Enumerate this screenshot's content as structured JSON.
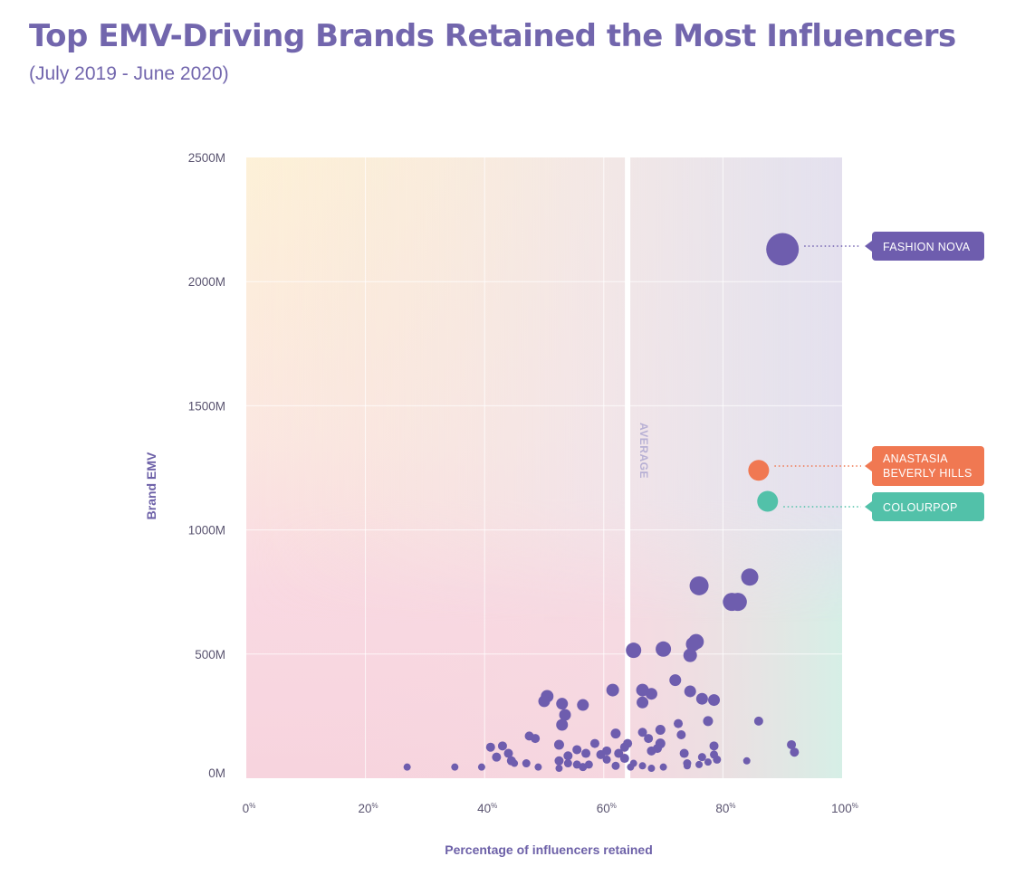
{
  "title": "Top EMV-Driving Brands Retained the Most Influencers",
  "subtitle": "(July 2019 - June 2020)",
  "colors": {
    "title": "#7266ad",
    "dot": "#6e5dae",
    "fashion_nova": "#6e5dae",
    "anastasia": "#f07852",
    "colourpop": "#52c1a9"
  },
  "chart_data": {
    "type": "scatter",
    "xlabel": "Percentage of influencers retained",
    "ylabel": "Brand EMV",
    "xlim": [
      0,
      100
    ],
    "ylim": [
      0,
      2500
    ],
    "x_ticks": [
      {
        "value": 0,
        "num": "0",
        "unit": "%"
      },
      {
        "value": 20,
        "num": "20",
        "unit": "%"
      },
      {
        "value": 40,
        "num": "40",
        "unit": "%"
      },
      {
        "value": 60,
        "num": "60",
        "unit": "%"
      },
      {
        "value": 80,
        "num": "80",
        "unit": "%"
      },
      {
        "value": 100,
        "num": "100",
        "unit": "%"
      }
    ],
    "y_ticks": [
      {
        "value": 0,
        "label": "0M"
      },
      {
        "value": 500,
        "label": "500M"
      },
      {
        "value": 1000,
        "label": "1000M"
      },
      {
        "value": 1500,
        "label": "1500M"
      },
      {
        "value": 2000,
        "label": "2000M"
      },
      {
        "value": 2500,
        "label": "2500M"
      }
    ],
    "average": {
      "x": 64,
      "label": "AVERAGE"
    },
    "highlights": [
      {
        "name": "Fashion Nova",
        "lines": [
          "FASHION NOVA"
        ],
        "x": 90,
        "y": 2130,
        "color": "#6e5dae"
      },
      {
        "name": "Anastasia Beverly Hills",
        "lines": [
          "ANASTASIA",
          "BEVERLY HILLS"
        ],
        "x": 86,
        "y": 1240,
        "color": "#f07852"
      },
      {
        "name": "Colourpop",
        "lines": [
          "COLOURPOP"
        ],
        "x": 87.5,
        "y": 1115,
        "color": "#52c1a9"
      }
    ],
    "points": [
      [
        84.5,
        810
      ],
      [
        76,
        775
      ],
      [
        81.5,
        710
      ],
      [
        82.5,
        710
      ],
      [
        75.5,
        550
      ],
      [
        70,
        520
      ],
      [
        65,
        515
      ],
      [
        75,
        540
      ],
      [
        74.5,
        495
      ],
      [
        72,
        395
      ],
      [
        61.5,
        355
      ],
      [
        66.5,
        355
      ],
      [
        68,
        340
      ],
      [
        74.5,
        350
      ],
      [
        50.5,
        330
      ],
      [
        50,
        310
      ],
      [
        53,
        300
      ],
      [
        56.5,
        295
      ],
      [
        76.5,
        320
      ],
      [
        78.5,
        315
      ],
      [
        66.5,
        305
      ],
      [
        53.5,
        255
      ],
      [
        53,
        215
      ],
      [
        86,
        230
      ],
      [
        77.5,
        230
      ],
      [
        72.5,
        220
      ],
      [
        69.5,
        195
      ],
      [
        66.5,
        185
      ],
      [
        62,
        180
      ],
      [
        73,
        175
      ],
      [
        47.5,
        170
      ],
      [
        48.5,
        160
      ],
      [
        58.5,
        140
      ],
      [
        64,
        140
      ],
      [
        52.5,
        135
      ],
      [
        41,
        125
      ],
      [
        43,
        130
      ],
      [
        63.5,
        125
      ],
      [
        69.5,
        140
      ],
      [
        68,
        110
      ],
      [
        67.5,
        160
      ],
      [
        78.5,
        130
      ],
      [
        91.5,
        135
      ],
      [
        92,
        105
      ],
      [
        44,
        100
      ],
      [
        42,
        85
      ],
      [
        55.5,
        115
      ],
      [
        60.5,
        110
      ],
      [
        54,
        90
      ],
      [
        57,
        100
      ],
      [
        59.5,
        95
      ],
      [
        62.5,
        100
      ],
      [
        63.5,
        80
      ],
      [
        69,
        120
      ],
      [
        73.5,
        100
      ],
      [
        74,
        60
      ],
      [
        76.5,
        85
      ],
      [
        78.5,
        95
      ],
      [
        79,
        75
      ],
      [
        84,
        70
      ],
      [
        44.5,
        70
      ],
      [
        47,
        60
      ],
      [
        49,
        45
      ],
      [
        52.5,
        70
      ],
      [
        54,
        60
      ],
      [
        55.5,
        55
      ],
      [
        56.5,
        45
      ],
      [
        57.5,
        55
      ],
      [
        60.5,
        75
      ],
      [
        62,
        50
      ],
      [
        64.5,
        45
      ],
      [
        66.5,
        50
      ],
      [
        68,
        40
      ],
      [
        70,
        45
      ],
      [
        74,
        50
      ],
      [
        76,
        55
      ],
      [
        77.5,
        65
      ],
      [
        27,
        45
      ],
      [
        35,
        45
      ],
      [
        39.5,
        45
      ],
      [
        45,
        60
      ],
      [
        52.5,
        40
      ],
      [
        65,
        60
      ]
    ],
    "point_sizes": [
      9.5,
      10.5,
      10,
      10,
      8.5,
      8.5,
      8.5,
      8,
      7.5,
      6.5,
      7,
      7,
      6.5,
      6.5,
      7,
      6.5,
      6.5,
      6.5,
      6.5,
      6.5,
      6.5,
      6.5,
      6.5,
      5,
      5.5,
      5,
      5.5,
      5,
      5.5,
      5,
      5,
      5,
      5,
      5,
      5.5,
      5,
      5,
      5,
      5.5,
      5,
      5,
      5,
      5,
      5,
      5,
      5,
      5,
      5,
      5,
      5,
      5,
      5,
      5,
      5,
      5,
      4.5,
      4.5,
      4.5,
      4.5,
      4,
      5,
      4.5,
      4,
      5,
      4.5,
      4.5,
      4.5,
      4.5,
      4.5,
      4.5,
      4,
      4,
      4,
      4,
      4,
      4,
      4,
      4,
      4,
      4,
      4,
      4,
      4
    ]
  }
}
